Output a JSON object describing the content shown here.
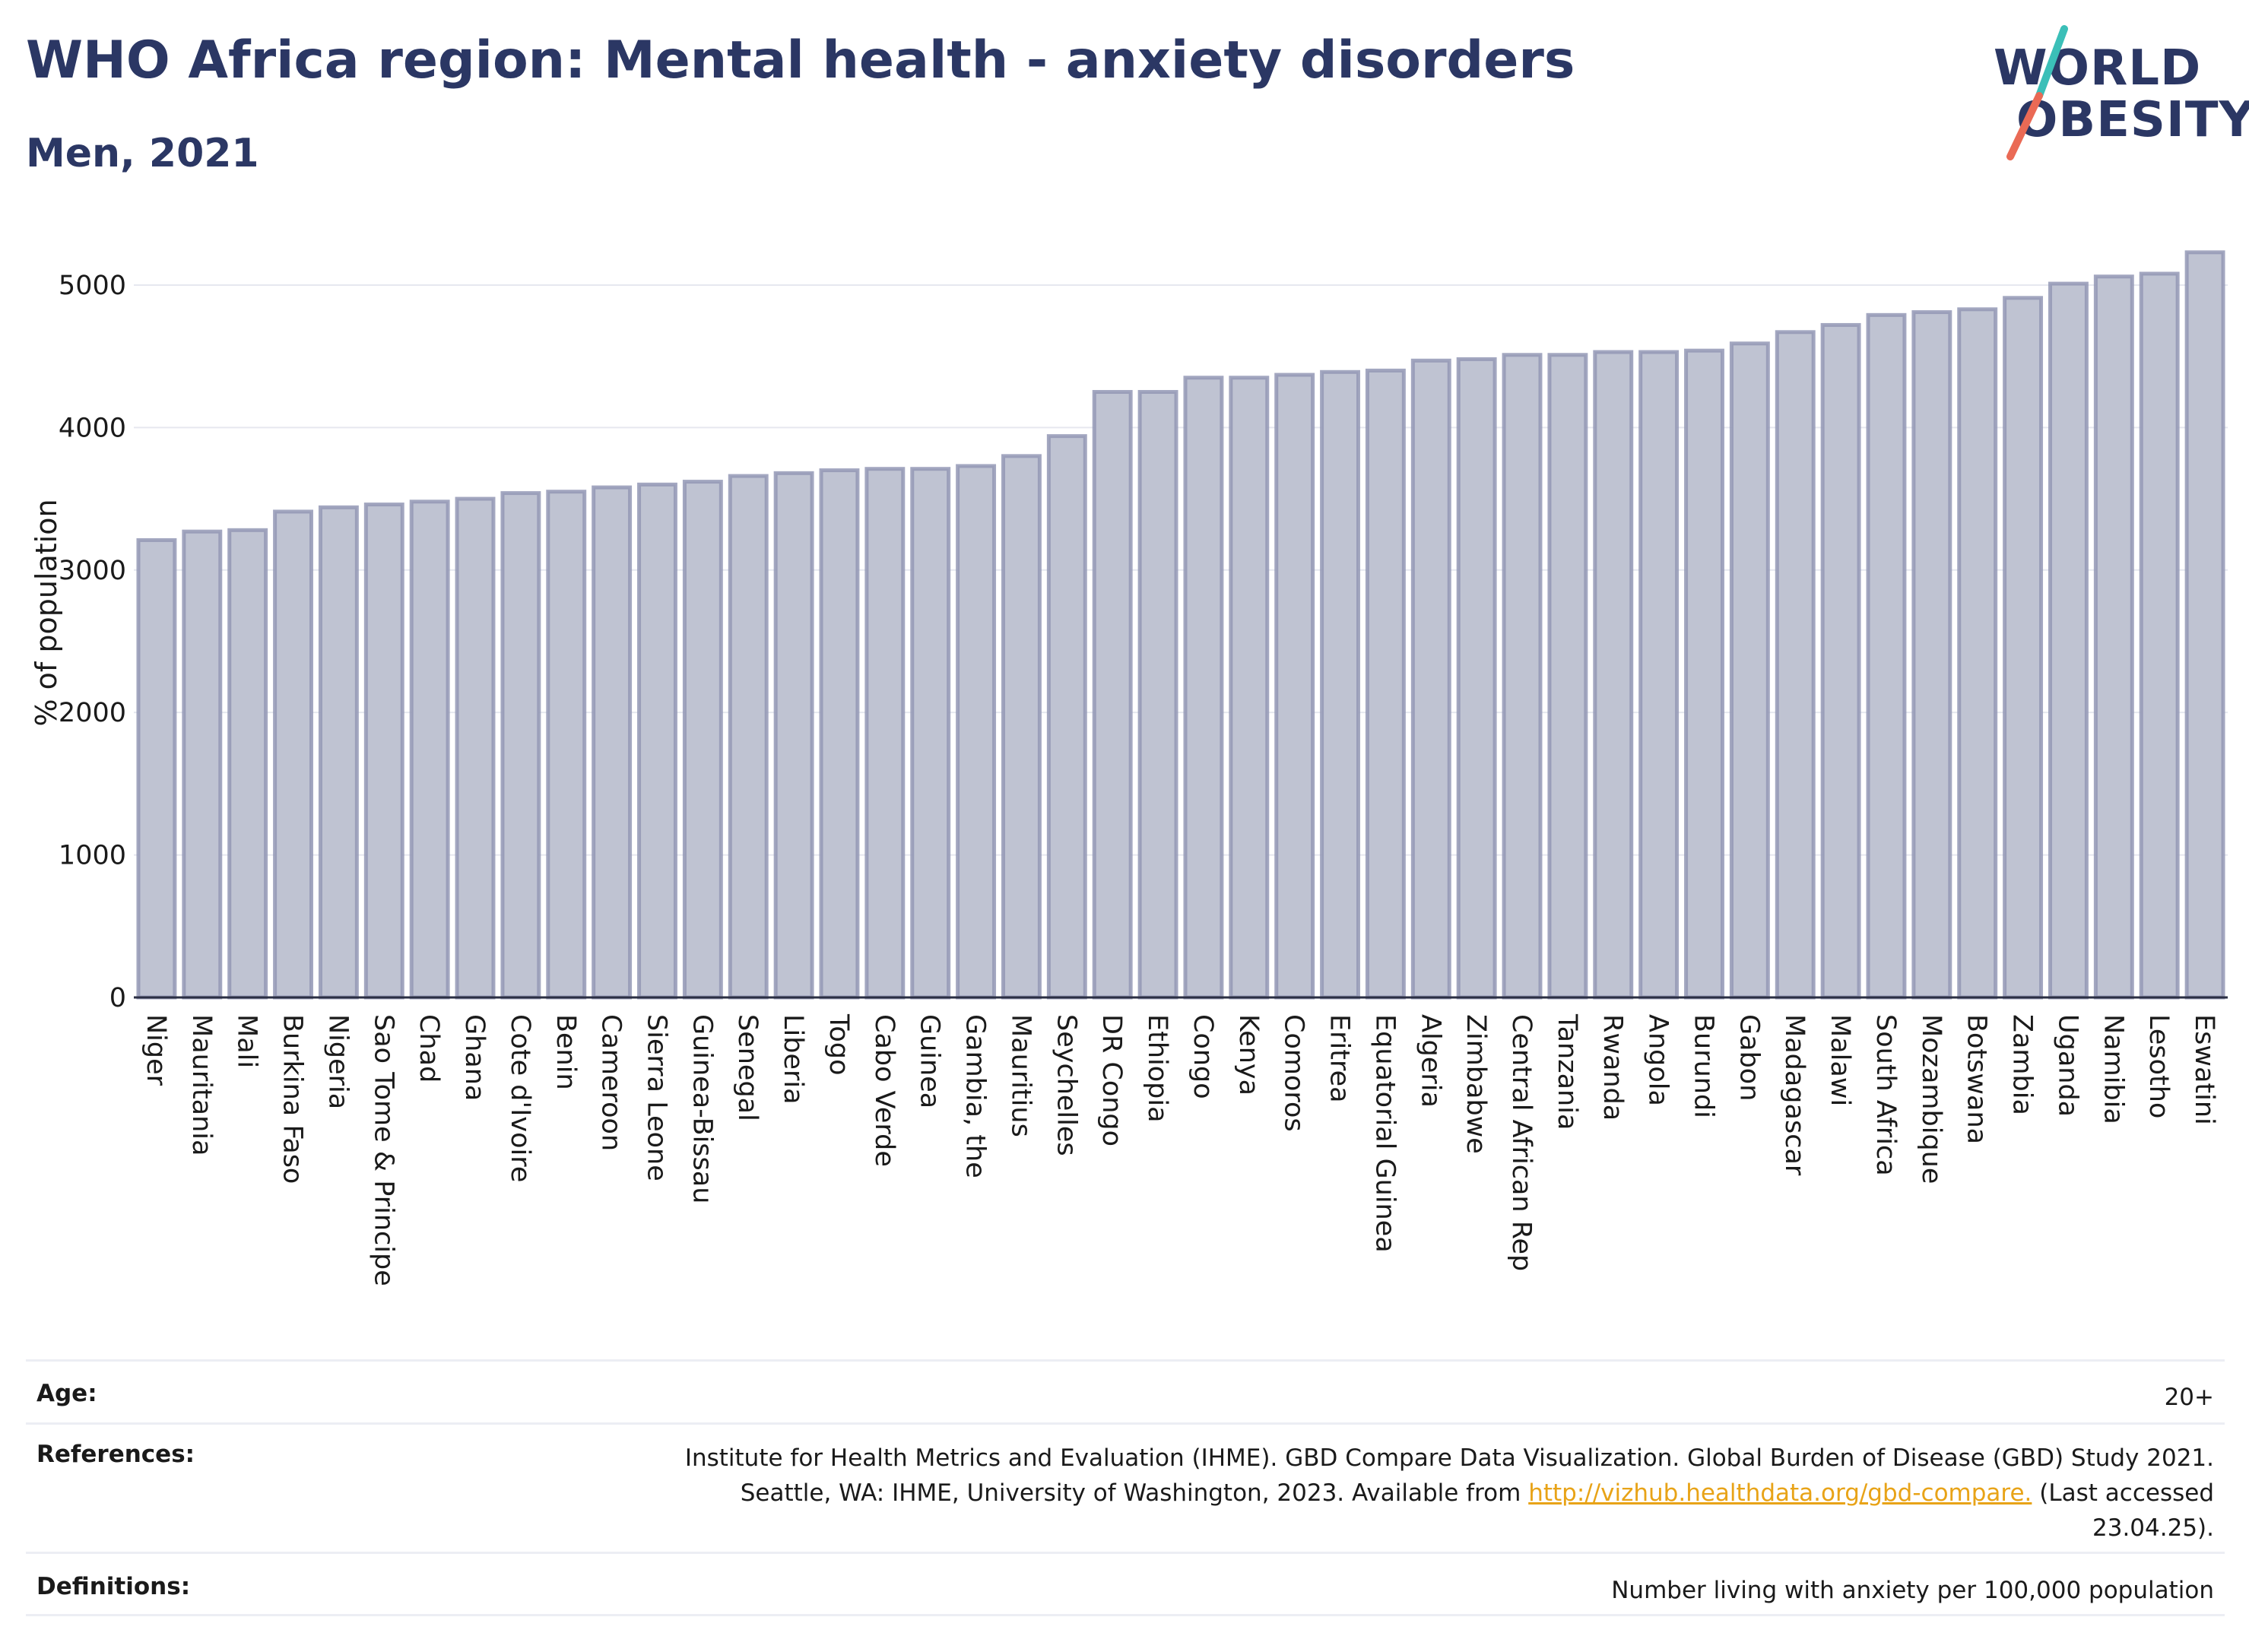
{
  "header": {
    "title": "WHO Africa region: Mental health - anxiety disorders",
    "subtitle": "Men, 2021"
  },
  "logo": {
    "line1": "WORLD",
    "line2": "OBESITY",
    "colors": {
      "text": "#2b3764",
      "slash_top": "#3bbfb8",
      "slash_bottom": "#ea6a55"
    }
  },
  "chart_data": {
    "type": "bar",
    "title": "",
    "ylabel": "% of population",
    "xlabel": "",
    "ylim": [
      0,
      5400
    ],
    "yticks": [
      0,
      1000,
      2000,
      3000,
      4000,
      5000
    ],
    "grid": true,
    "bar_fill": "#bfc3d2",
    "bar_stroke": "#9398b5",
    "categories": [
      "Niger",
      "Mauritania",
      "Mali",
      "Burkina Faso",
      "Nigeria",
      "Sao Tome & Principe",
      "Chad",
      "Ghana",
      "Cote d'Ivoire",
      "Benin",
      "Cameroon",
      "Sierra Leone",
      "Guinea-Bissau",
      "Senegal",
      "Liberia",
      "Togo",
      "Cabo Verde",
      "Guinea",
      "Gambia, the",
      "Mauritius",
      "Seychelles",
      "DR Congo",
      "Ethiopia",
      "Congo",
      "Kenya",
      "Comoros",
      "Eritrea",
      "Equatorial Guinea",
      "Algeria",
      "Zimbabwe",
      "Central African Rep",
      "Tanzania",
      "Rwanda",
      "Angola",
      "Burundi",
      "Gabon",
      "Madagascar",
      "Malawi",
      "South Africa",
      "Mozambique",
      "Botswana",
      "Zambia",
      "Uganda",
      "Namibia",
      "Lesotho",
      "Eswatini"
    ],
    "values": [
      3210,
      3270,
      3280,
      3410,
      3440,
      3460,
      3480,
      3500,
      3540,
      3550,
      3580,
      3600,
      3620,
      3660,
      3680,
      3700,
      3710,
      3710,
      3730,
      3800,
      3940,
      4250,
      4250,
      4350,
      4350,
      4370,
      4390,
      4400,
      4470,
      4480,
      4510,
      4510,
      4530,
      4530,
      4540,
      4590,
      4670,
      4720,
      4790,
      4810,
      4830,
      4910,
      5010,
      5060,
      5080,
      5230
    ]
  },
  "meta": {
    "age_label": "Age:",
    "age_value": "20+",
    "references_label": "References:",
    "references_line1": "Institute for Health Metrics and Evaluation (IHME). GBD Compare Data Visualization. Global Burden of Disease (GBD) Study 2021.",
    "references_line2_pre": "Seattle, WA: IHME, University of Washington, 2023. Available from ",
    "references_link": "http://vizhub.healthdata.org/gbd-compare.",
    "references_line2_post": " (Last accessed",
    "references_line3": "23.04.25).",
    "definitions_label": "Definitions:",
    "definitions_value": "Number living with anxiety per 100,000 population"
  }
}
